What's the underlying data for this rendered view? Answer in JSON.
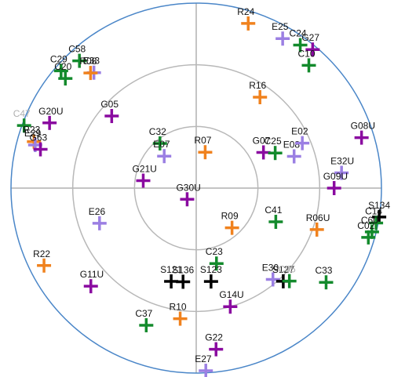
{
  "plot": {
    "rings": [
      0,
      30,
      60
    ],
    "outer_ring_color": "#4a86c8",
    "inner_ring_color": "#b8b8b8",
    "axis_color": "#b0b0b0"
  },
  "constellation_colors": {
    "R": "#f0821e",
    "G": "#8a0aa0",
    "E": "#9b7fe3",
    "C": "#138a2c",
    "S": "#000000"
  },
  "satellites": [
    {
      "id": "R24",
      "sys": "R",
      "az": 17.5,
      "el": 6
    },
    {
      "id": "E25",
      "sys": "E",
      "az": 30,
      "el": 6
    },
    {
      "id": "C24",
      "sys": "C",
      "az": 36,
      "el": 4
    },
    {
      "id": "G27",
      "sys": "G",
      "az": 40,
      "el": 2
    },
    {
      "id": "C10",
      "sys": "C",
      "az": 42.5,
      "el": 9
    },
    {
      "id": "C29",
      "sys": "C",
      "az": 311,
      "el": 3
    },
    {
      "id": "C58",
      "sys": "C",
      "az": 317.5,
      "el": 6
    },
    {
      "id": "C20",
      "sys": "C",
      "az": 310,
      "el": 7
    },
    {
      "id": "E33",
      "sys": "E",
      "az": 318.5,
      "el": 15
    },
    {
      "id": "R08",
      "sys": "R",
      "az": 317.5,
      "el": 14
    },
    {
      "id": "C47",
      "sys": "C",
      "az": 290,
      "el": 1,
      "label_color": "#b0b0b0"
    },
    {
      "id": "G20U",
      "sys": "G",
      "az": 294,
      "el": 12
    },
    {
      "id": "R23",
      "sys": "R",
      "az": 286,
      "el": 8
    },
    {
      "id": "E29",
      "sys": "E",
      "az": 285,
      "el": 9
    },
    {
      "id": "G63",
      "sys": "G",
      "az": 284,
      "el": 12
    },
    {
      "id": "G05",
      "sys": "G",
      "az": 310.5,
      "el": 36
    },
    {
      "id": "R16",
      "sys": "R",
      "az": 35,
      "el": 36
    },
    {
      "id": "G08U",
      "sys": "G",
      "az": 73,
      "el": 6
    },
    {
      "id": "C32",
      "sys": "C",
      "az": 321,
      "el": 62
    },
    {
      "id": "E07",
      "sys": "E",
      "az": 315,
      "el": 68
    },
    {
      "id": "R07",
      "sys": "R",
      "az": 14,
      "el": 72
    },
    {
      "id": "G07",
      "sys": "G",
      "az": 62,
      "el": 53
    },
    {
      "id": "C25",
      "sys": "C",
      "az": 66,
      "el": 48
    },
    {
      "id": "E08",
      "sys": "E",
      "az": 72,
      "el": 40
    },
    {
      "id": "E02",
      "sys": "E",
      "az": 67,
      "el": 34
    },
    {
      "id": "E32U",
      "sys": "E",
      "az": 84,
      "el": 19
    },
    {
      "id": "G09U",
      "sys": "G",
      "az": 90,
      "el": 23
    },
    {
      "id": "G21U",
      "sys": "G",
      "az": 278,
      "el": 64
    },
    {
      "id": "G30U",
      "sys": "G",
      "az": 219,
      "el": 83
    },
    {
      "id": "E26",
      "sys": "E",
      "az": 250,
      "el": 40
    },
    {
      "id": "R09",
      "sys": "R",
      "az": 138,
      "el": 64
    },
    {
      "id": "C41",
      "sys": "C",
      "az": 113,
      "el": 48
    },
    {
      "id": "R06U",
      "sys": "R",
      "az": 109,
      "el": 28
    },
    {
      "id": "S134",
      "sys": "S",
      "az": 99,
      "el": 0
    },
    {
      "id": "C14",
      "sys": "C",
      "az": 101,
      "el": 1
    },
    {
      "id": "C60",
      "sys": "C",
      "az": 104,
      "el": 2
    },
    {
      "id": "C02",
      "sys": "C",
      "az": 106,
      "el": 3
    },
    {
      "id": "R22",
      "sys": "R",
      "az": 243,
      "el": 7
    },
    {
      "id": "G11U",
      "sys": "G",
      "az": 227,
      "el": 20
    },
    {
      "id": "C23",
      "sys": "C",
      "az": 165,
      "el": 52
    },
    {
      "id": "S121",
      "sys": "S",
      "az": 195,
      "el": 43
    },
    {
      "id": "S136",
      "sys": "S",
      "az": 188,
      "el": 44
    },
    {
      "id": "S123",
      "sys": "S",
      "az": 171,
      "el": 44
    },
    {
      "id": "E30",
      "sys": "E",
      "az": 140,
      "el": 32
    },
    {
      "id": "S127",
      "sys": "S",
      "az": 137,
      "el": 28
    },
    {
      "id": "C05",
      "sys": "C",
      "az": 135,
      "el": 26,
      "label_color": "#b0b0b0"
    },
    {
      "id": "C33",
      "sys": "C",
      "az": 126,
      "el": 12
    },
    {
      "id": "R10",
      "sys": "R",
      "az": 187,
      "el": 26
    },
    {
      "id": "G14U",
      "sys": "G",
      "az": 164,
      "el": 30
    },
    {
      "id": "C37",
      "sys": "C",
      "az": 200,
      "el": 19
    },
    {
      "id": "G22",
      "sys": "G",
      "az": 173,
      "el": 11
    },
    {
      "id": "E27",
      "sys": "E",
      "az": 177,
      "el": 1
    }
  ]
}
